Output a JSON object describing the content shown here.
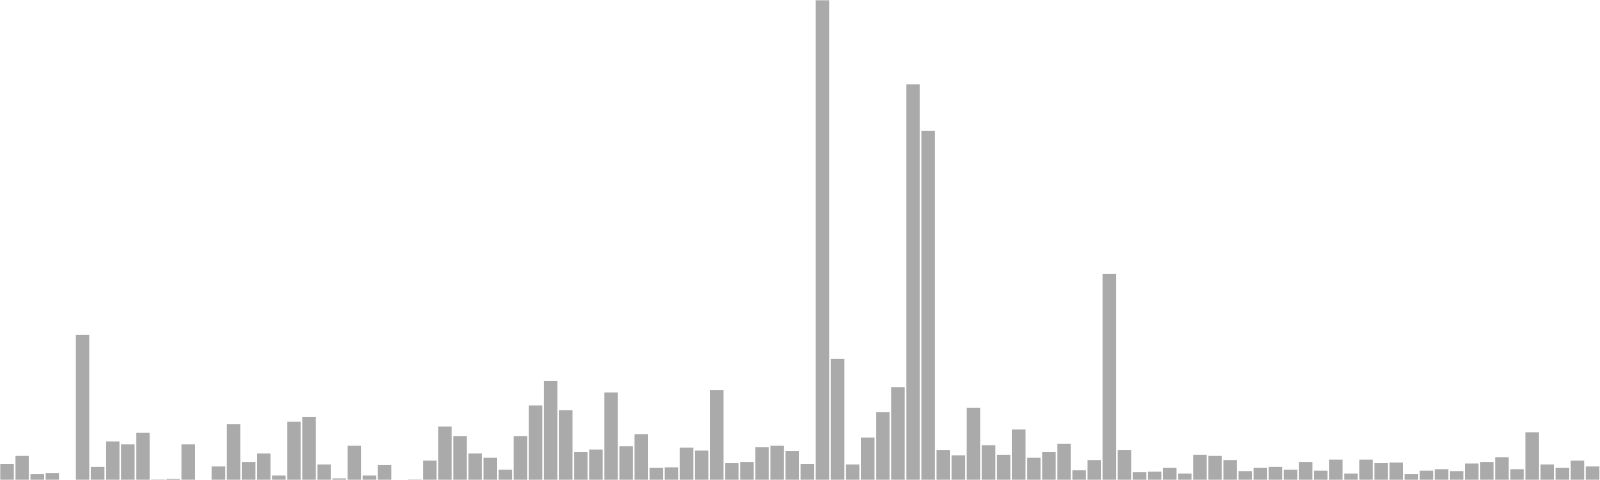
{
  "chart_data": {
    "type": "bar",
    "title": "",
    "xlabel": "",
    "ylabel": "",
    "ylim": [
      0,
      100
    ],
    "grid": false,
    "legend": "none",
    "bar_color": "#aaaaaa",
    "bar_edge_color": "#ffffff",
    "values": [
      3.4,
      5.1,
      1.3,
      1.5,
      0.0,
      30.3,
      2.8,
      8.1,
      7.5,
      9.9,
      0.2,
      0.3,
      7.5,
      0.0,
      2.9,
      11.7,
      3.8,
      5.6,
      1.0,
      12.2,
      13.2,
      3.3,
      0.4,
      7.2,
      1.0,
      3.2,
      0.0,
      0.2,
      4.1,
      11.2,
      9.2,
      5.6,
      4.7,
      2.2,
      9.2,
      15.6,
      20.7,
      14.6,
      5.9,
      6.4,
      18.3,
      7.1,
      9.6,
      2.6,
      2.7,
      6.8,
      6.2,
      18.8,
      3.6,
      3.8,
      6.9,
      7.2,
      6.1,
      3.4,
      100.0,
      25.3,
      3.3,
      8.9,
      14.2,
      19.4,
      82.5,
      72.8,
      6.3,
      5.2,
      15.1,
      7.3,
      5.3,
      10.6,
      4.7,
      5.9,
      7.6,
      2.1,
      4.2,
      43.0,
      6.3,
      1.7,
      1.8,
      2.6,
      1.4,
      5.3,
      5.1,
      4.2,
      1.9,
      2.6,
      2.8,
      2.2,
      3.8,
      2.0,
      4.3,
      1.4,
      4.3,
      3.6,
      3.7,
      1.3,
      2.0,
      2.3,
      1.9,
      3.5,
      3.8,
      4.8,
      2.3,
      10.0,
      3.3,
      2.6,
      4.1,
      2.9
    ]
  }
}
